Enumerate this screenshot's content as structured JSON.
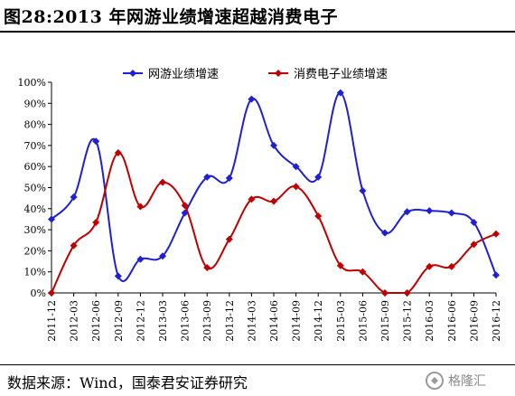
{
  "header": {
    "title": "图28:2013 年网游业绩增速超越消费电子"
  },
  "footer": {
    "source": "数据来源：Wind，国泰君安证券研究",
    "watermark": "格隆汇"
  },
  "chart_data": {
    "type": "line",
    "x": [
      "2011-12",
      "2012-03",
      "2012-06",
      "2012-09",
      "2012-12",
      "2013-03",
      "2013-06",
      "2013-09",
      "2013-12",
      "2014-03",
      "2014-06",
      "2014-09",
      "2014-12",
      "2015-03",
      "2015-06",
      "2015-09",
      "2015-12",
      "2016-03",
      "2016-06",
      "2016-09",
      "2016-12"
    ],
    "ylim": [
      0,
      100
    ],
    "yticks": [
      "0%",
      "10%",
      "20%",
      "30%",
      "40%",
      "50%",
      "60%",
      "70%",
      "80%",
      "90%",
      "100%"
    ],
    "legend_position": "top",
    "series": [
      {
        "name": "网游业绩增速",
        "color": "#1f1fd6",
        "values": [
          35,
          45.5,
          72,
          8,
          16,
          17.5,
          38,
          55,
          54.5,
          92,
          70,
          60,
          55,
          95,
          48.5,
          28.5,
          38.5,
          39,
          38,
          33.5,
          8.5
        ]
      },
      {
        "name": "消费电子业绩增速",
        "color": "#c00000",
        "values": [
          0,
          22.5,
          33.5,
          66.5,
          41,
          52.5,
          41.5,
          12,
          25.5,
          44.5,
          43.5,
          50.5,
          36.5,
          13,
          10,
          0,
          0,
          12.5,
          12.5,
          23,
          28
        ]
      }
    ]
  }
}
